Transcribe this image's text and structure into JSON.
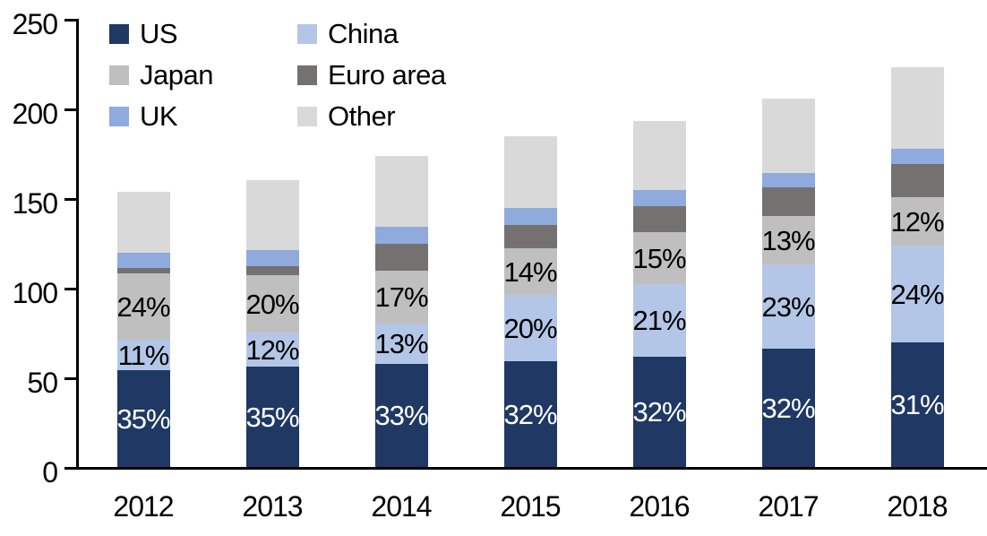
{
  "chart_data": {
    "type": "bar",
    "variant": "stacked-column",
    "title": "",
    "xlabel": "",
    "ylabel": "",
    "categories": [
      "2012",
      "2013",
      "2014",
      "2015",
      "2016",
      "2017",
      "2018"
    ],
    "ylim": [
      0,
      250
    ],
    "yticks": [
      0,
      50,
      100,
      150,
      200,
      250
    ],
    "grid": false,
    "axis_color": "#000000",
    "background_color": "#ffffff",
    "series": [
      {
        "name": "US",
        "color": "#1F3864",
        "label_color": "#ffffff",
        "values": [
          54,
          56,
          57.5,
          59,
          61.5,
          66,
          69.5
        ],
        "labels": [
          "35%",
          "35%",
          "33%",
          "32%",
          "32%",
          "32%",
          "31%"
        ]
      },
      {
        "name": "China",
        "color": "#B4C6E7",
        "label_color": "#000000",
        "values": [
          17,
          19,
          22.5,
          37,
          40.5,
          47,
          54
        ],
        "labels": [
          "11%",
          "12%",
          "13%",
          "20%",
          "21%",
          "23%",
          "24%"
        ]
      },
      {
        "name": "Japan",
        "color": "#BFBFBF",
        "label_color": "#000000",
        "values": [
          37,
          32,
          29.5,
          26,
          29,
          27,
          27
        ],
        "labels": [
          "24%",
          "20%",
          "17%",
          "14%",
          "15%",
          "13%",
          "12%"
        ]
      },
      {
        "name": "Euro area",
        "color": "#767171",
        "label_color": "#000000",
        "values": [
          3,
          5,
          15,
          13,
          14.5,
          16,
          18.5
        ],
        "labels": null
      },
      {
        "name": "UK",
        "color": "#8FAADC",
        "label_color": "#000000",
        "values": [
          8.5,
          9,
          9.5,
          9.5,
          9,
          8,
          8.5
        ],
        "labels": null
      },
      {
        "name": "Other",
        "color": "#D9D9D9",
        "label_color": "#000000",
        "values": [
          34,
          39,
          39.5,
          40,
          38.5,
          41.5,
          45.5
        ],
        "labels": null
      }
    ],
    "totals": [
      153.5,
      160,
      173.5,
      184.5,
      193,
      205.5,
      223
    ],
    "legend": {
      "position": "top-left",
      "columns": 2,
      "entries": [
        "US",
        "China",
        "Japan",
        "Euro area",
        "UK",
        "Other"
      ]
    }
  }
}
